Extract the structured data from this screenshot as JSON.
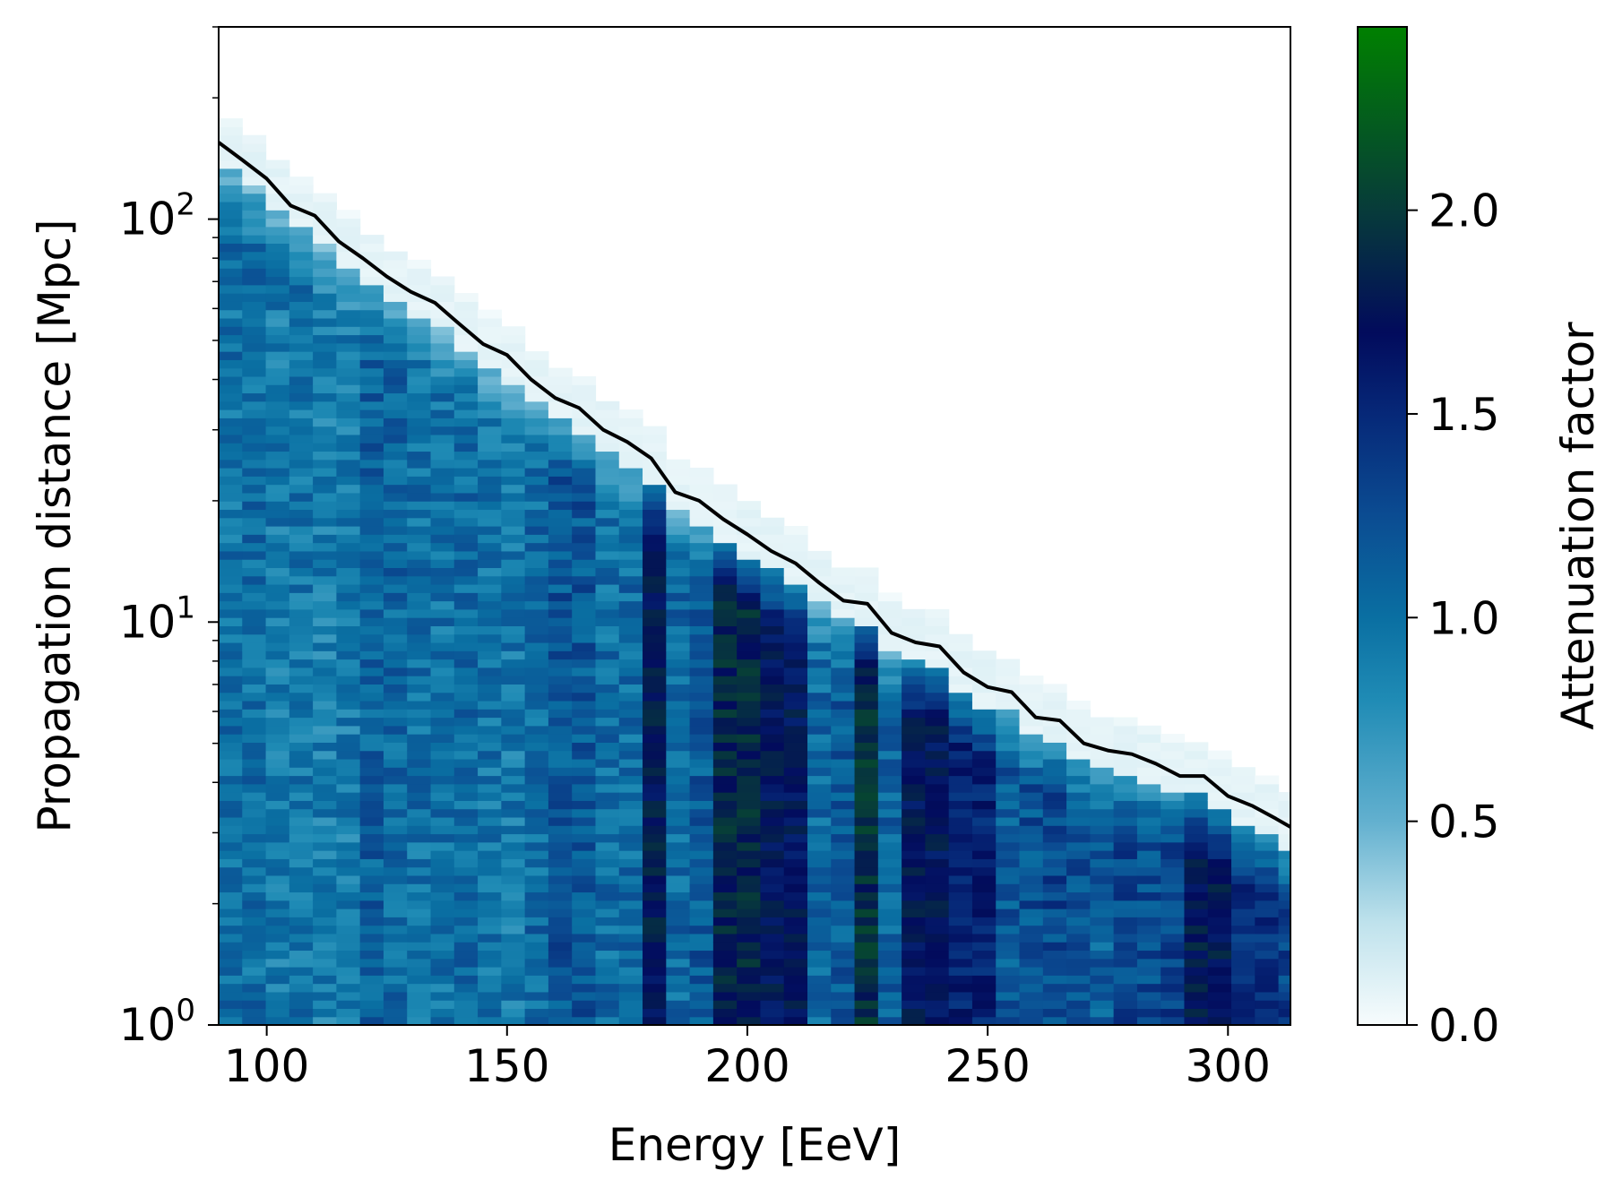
{
  "chart_data": {
    "type": "heatmap",
    "title": "",
    "xlabel": "Energy [EeV]",
    "ylabel": "Propagation distance [Mpc]",
    "xlim": [
      90,
      313
    ],
    "ylim": [
      1,
      300
    ],
    "yscale": "log",
    "x_ticks": [
      100,
      150,
      200,
      250,
      300
    ],
    "x_tick_labels": [
      "100",
      "150",
      "200",
      "250",
      "300"
    ],
    "y_ticks": [
      1,
      10,
      100
    ],
    "y_tick_labels": [
      {
        "base": "10",
        "exp": "0"
      },
      {
        "base": "10",
        "exp": "1"
      },
      {
        "base": "10",
        "exp": "2"
      }
    ],
    "colorbar": {
      "label": "Attenuation factor",
      "range": [
        0.0,
        2.45
      ],
      "ticks": [
        0.0,
        0.5,
        1.0,
        1.5,
        2.0
      ],
      "tick_labels": [
        "0.0",
        "0.5",
        "1.0",
        "1.5",
        "2.0"
      ],
      "colormap": [
        {
          "v": 0.0,
          "color": "#f7fcfd"
        },
        {
          "v": 0.25,
          "color": "#bfe2ec"
        },
        {
          "v": 0.5,
          "color": "#62b0cf"
        },
        {
          "v": 0.8,
          "color": "#1f8bb5"
        },
        {
          "v": 1.0,
          "color": "#0a6fa2"
        },
        {
          "v": 1.25,
          "color": "#0b4c92"
        },
        {
          "v": 1.5,
          "color": "#062878"
        },
        {
          "v": 1.7,
          "color": "#020b5c"
        },
        {
          "v": 2.0,
          "color": "#073b3a"
        },
        {
          "v": 2.45,
          "color": "#008000"
        }
      ]
    },
    "heatmap": {
      "x_bin_width": 4.9,
      "n_y_bins": 120,
      "highlight_columns": [
        {
          "x": 179,
          "level": 1.75
        },
        {
          "x": 198,
          "level": 1.85
        },
        {
          "x": 208,
          "level": 1.7
        },
        {
          "x": 223,
          "level": 1.9
        },
        {
          "x": 237,
          "level": 1.7
        },
        {
          "x": 247,
          "level": 1.55
        },
        {
          "x": 296,
          "level": 1.75
        },
        {
          "x": 306,
          "level": 1.45
        }
      ]
    },
    "series": [
      {
        "type": "line",
        "color": "#000000",
        "x": [
          90,
          95,
          100,
          105,
          110,
          115,
          120,
          125,
          130,
          135,
          140,
          145,
          150,
          155,
          160,
          165,
          170,
          175,
          180,
          185,
          190,
          195,
          200,
          205,
          210,
          215,
          220,
          225,
          230,
          235,
          240,
          245,
          250,
          255,
          260,
          265,
          270,
          275,
          280,
          285,
          290,
          295,
          300,
          305,
          310,
          313
        ],
        "y": [
          155,
          140,
          126,
          108,
          102,
          88,
          80,
          72,
          66,
          62,
          55,
          49,
          46,
          40,
          36,
          34,
          30,
          28,
          25.5,
          21,
          20,
          18,
          16.5,
          15,
          14,
          12.5,
          11.3,
          11.1,
          9.4,
          8.9,
          8.7,
          7.5,
          6.9,
          6.7,
          5.8,
          5.7,
          5.0,
          4.8,
          4.7,
          4.45,
          4.15,
          4.15,
          3.7,
          3.5,
          3.25,
          3.1
        ]
      }
    ],
    "grid": false,
    "legend": "none"
  }
}
